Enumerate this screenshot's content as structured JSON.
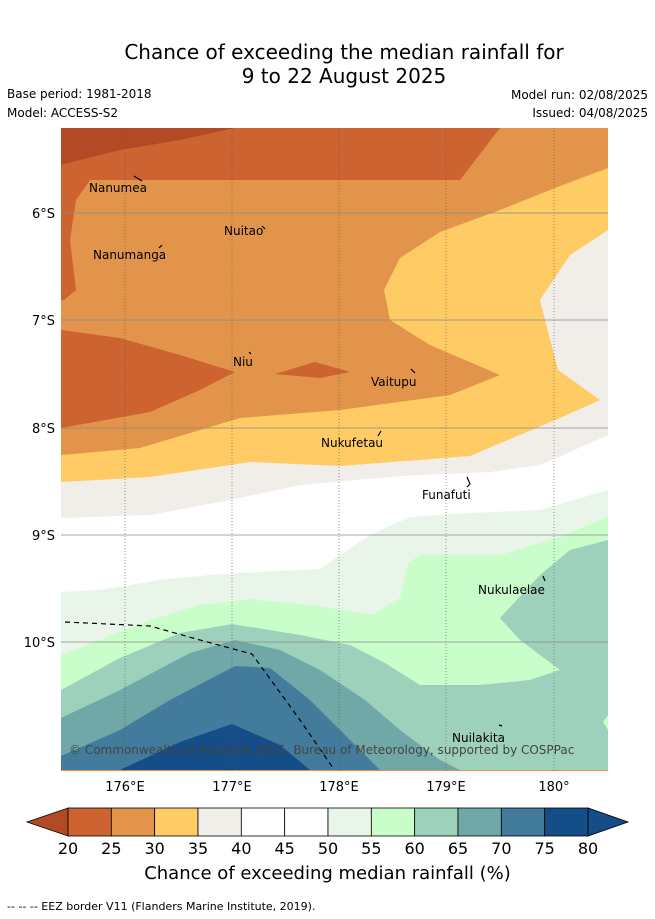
{
  "title_line1": "Chance of exceeding the median rainfall for",
  "title_line2": "9 to 22 August 2025",
  "base_period": "Base period: 1981-2018",
  "model": "Model: ACCESS-S2",
  "model_run": "Model run: 02/08/2025",
  "issued": "Issued: 04/08/2025",
  "copyright": "© Commonwealth of Australia 2025, Bureau of Meteorology, supported by COSPPac",
  "x_ticks": [
    "176°E",
    "177°E",
    "178°E",
    "179°E",
    "180°"
  ],
  "y_ticks": [
    "6°S",
    "7°S",
    "8°S",
    "9°S",
    "10°S"
  ],
  "places": [
    {
      "name": "Nanumea",
      "lon": 176.1,
      "lat": -5.67
    },
    {
      "name": "Nuitao",
      "lon": 177.3,
      "lat": -6.1
    },
    {
      "name": "Nanumanga",
      "lon": 176.32,
      "lat": -6.29
    },
    {
      "name": "Niu",
      "lon": 177.16,
      "lat": -7.27
    },
    {
      "name": "Vaitupu",
      "lon": 178.68,
      "lat": -7.48
    },
    {
      "name": "Nukufetau",
      "lon": 178.38,
      "lat": -8.02
    },
    {
      "name": "Funafuti",
      "lon": 179.2,
      "lat": -8.52
    },
    {
      "name": "Nukulaelae",
      "lon": 179.84,
      "lat": -9.38
    },
    {
      "name": "Nuilakita",
      "lon": 179.5,
      "lat": -10.78
    }
  ],
  "colorbar": {
    "label": "Chance of exceeding median rainfall (%)",
    "ticks": [
      "20",
      "25",
      "30",
      "35",
      "40",
      "45",
      "50",
      "55",
      "60",
      "65",
      "70",
      "75",
      "80"
    ],
    "colors": [
      "#b44a25",
      "#cc6331",
      "#e2944a",
      "#fecb65",
      "#f1ede8",
      "#ffffff",
      "#ffffff",
      "#eaf5ea",
      "#c9fdca",
      "#9dd1bb",
      "#70a8a8",
      "#427b9c",
      "#144d87"
    ]
  },
  "legend_note": "-- -- -- EEZ border V11 (Flanders Marine Institute, 2019)."
}
